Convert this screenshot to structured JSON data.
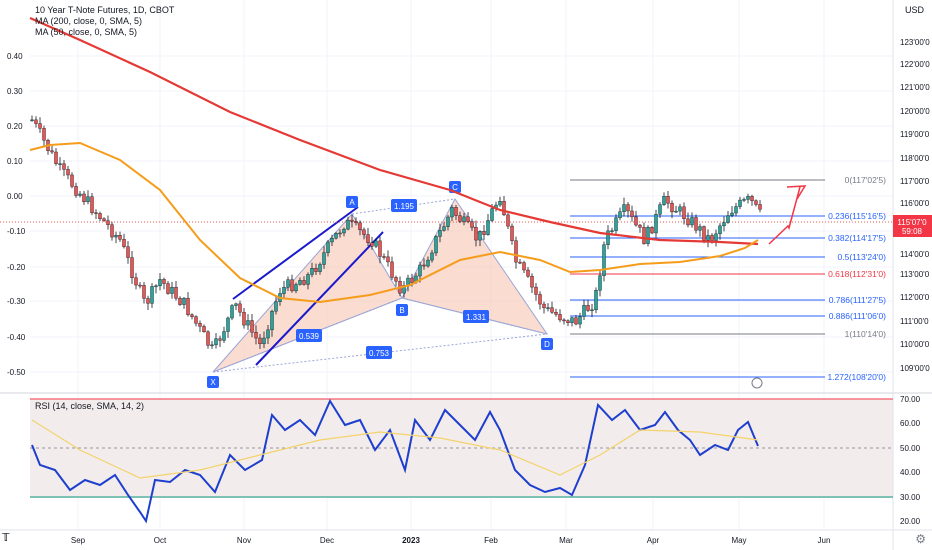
{
  "legend": {
    "title": "10 Year T-Note Futures, 1D, CBOT",
    "ma200": "MA (200, close, 0, SMA, 5)",
    "ma50": "MA (50, close, 0, SMA, 5)",
    "rsi": "RSI (14, close, SMA, 14, 2)",
    "currency": "USD"
  },
  "price_badge": {
    "price": "115'07'0",
    "countdown": "59:08"
  },
  "chart_data": {
    "type": "line",
    "x_labels": [
      "Sep",
      "Oct",
      "Nov",
      "Dec",
      "2023",
      "Feb",
      "Mar",
      "Apr",
      "May",
      "Jun"
    ],
    "left_axis_ticks": [
      "0.40",
      "0.30",
      "0.20",
      "0.10",
      "0.00",
      "-0.10",
      "-0.20",
      "-0.30",
      "-0.40",
      "-0.50"
    ],
    "right_axis_ticks": [
      "123'00'0",
      "122'00'0",
      "121'00'0",
      "120'00'0",
      "119'00'0",
      "118'00'0",
      "117'00'0",
      "116'00'0",
      "114'00'0",
      "113'00'0",
      "112'00'0",
      "111'00'0",
      "110'00'0",
      "109'00'0"
    ],
    "rsi_axis_ticks": [
      "70.00",
      "60.00",
      "50.00",
      "40.00",
      "30.00",
      "20.00"
    ],
    "fib_levels": [
      {
        "ratio": "0",
        "label": "0(117'02'5)"
      },
      {
        "ratio": "0.236",
        "label": "0.236(115'16'5)"
      },
      {
        "ratio": "0.382",
        "label": "0.382(114'17'5)"
      },
      {
        "ratio": "0.5",
        "label": "0.5(113'24'0)"
      },
      {
        "ratio": "0.618",
        "label": "0.618(112'31'0)"
      },
      {
        "ratio": "0.786",
        "label": "0.786(111'27'5)"
      },
      {
        "ratio": "0.886",
        "label": "0.886(111'06'0)"
      },
      {
        "ratio": "1",
        "label": "1(110'14'0)"
      },
      {
        "ratio": "1.272",
        "label": "1.272(108'20'0)"
      }
    ],
    "pattern_points": [
      "X",
      "A",
      "B",
      "C",
      "D"
    ],
    "pattern_ratios": [
      "0.539",
      "1.195",
      "0.753",
      "1.331"
    ],
    "rsi_levels": {
      "upper": 70,
      "middle": 50,
      "lower": 30
    },
    "colors": {
      "ma200": "#e53935",
      "ma50": "#f59c1a",
      "rsi": "#1e3fce",
      "rsi_ma": "#f3d36b",
      "up": "#26a69a",
      "down": "#ef5350",
      "pattern": "#f7c4b2",
      "fib": "#2962ff",
      "fib_mid": "#f23645"
    }
  }
}
